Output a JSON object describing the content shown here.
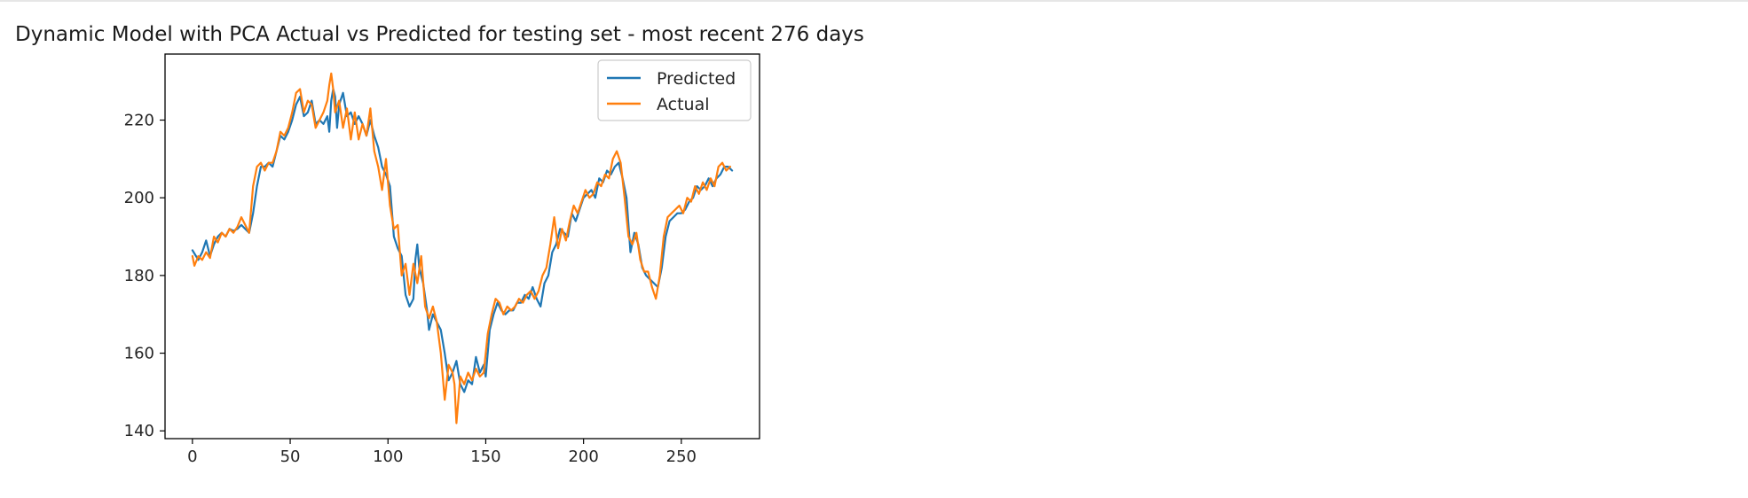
{
  "output": {
    "title": "Dynamic Model with PCA Actual vs Predicted for testing set - most recent 276 days"
  },
  "chart_data": {
    "type": "line",
    "title": "",
    "xlabel": "",
    "ylabel": "",
    "xlim": [
      -14,
      290
    ],
    "ylim": [
      138,
      237
    ],
    "xticks": [
      0,
      50,
      100,
      150,
      200,
      250
    ],
    "yticks": [
      140,
      160,
      180,
      200,
      220
    ],
    "grid": false,
    "legend_position": "top-right",
    "series": [
      {
        "name": "Predicted",
        "color": "#1f77b4",
        "points": [
          [
            0,
            186.5
          ],
          [
            3,
            184
          ],
          [
            5,
            186
          ],
          [
            7,
            189
          ],
          [
            9,
            185
          ],
          [
            11,
            188
          ],
          [
            13,
            190
          ],
          [
            15,
            191
          ],
          [
            17,
            190
          ],
          [
            19,
            192
          ],
          [
            21,
            191.5
          ],
          [
            23,
            192
          ],
          [
            25,
            193
          ],
          [
            27,
            192
          ],
          [
            29,
            191
          ],
          [
            31,
            196
          ],
          [
            33,
            203
          ],
          [
            35,
            208
          ],
          [
            37,
            208
          ],
          [
            39,
            209
          ],
          [
            41,
            208
          ],
          [
            43,
            212
          ],
          [
            45,
            216
          ],
          [
            47,
            215
          ],
          [
            49,
            217
          ],
          [
            51,
            220
          ],
          [
            53,
            224
          ],
          [
            55,
            226
          ],
          [
            57,
            221
          ],
          [
            59,
            222
          ],
          [
            61,
            225
          ],
          [
            63,
            219
          ],
          [
            65,
            220
          ],
          [
            67,
            219
          ],
          [
            69,
            221
          ],
          [
            70,
            217
          ],
          [
            71,
            225
          ],
          [
            72,
            228
          ],
          [
            73,
            226
          ],
          [
            74,
            218
          ],
          [
            75,
            224
          ],
          [
            77,
            227
          ],
          [
            79,
            221
          ],
          [
            81,
            222
          ],
          [
            83,
            219
          ],
          [
            85,
            221
          ],
          [
            87,
            219
          ],
          [
            89,
            216
          ],
          [
            91,
            220
          ],
          [
            93,
            216
          ],
          [
            95,
            213
          ],
          [
            97,
            208
          ],
          [
            99,
            206
          ],
          [
            101,
            203
          ],
          [
            103,
            190
          ],
          [
            105,
            187
          ],
          [
            107,
            185
          ],
          [
            109,
            175
          ],
          [
            111,
            172
          ],
          [
            113,
            174
          ],
          [
            114,
            184
          ],
          [
            115,
            188
          ],
          [
            116,
            182
          ],
          [
            118,
            178
          ],
          [
            120,
            171
          ],
          [
            121,
            166
          ],
          [
            123,
            170
          ],
          [
            125,
            168
          ],
          [
            127,
            166
          ],
          [
            129,
            160
          ],
          [
            131,
            153
          ],
          [
            133,
            155
          ],
          [
            135,
            158
          ],
          [
            137,
            152
          ],
          [
            139,
            150
          ],
          [
            141,
            153
          ],
          [
            143,
            152
          ],
          [
            145,
            159
          ],
          [
            147,
            155
          ],
          [
            149,
            157
          ],
          [
            150,
            154
          ],
          [
            152,
            166
          ],
          [
            154,
            170
          ],
          [
            156,
            173
          ],
          [
            158,
            171
          ],
          [
            160,
            170
          ],
          [
            162,
            171
          ],
          [
            164,
            171
          ],
          [
            166,
            173
          ],
          [
            168,
            173
          ],
          [
            170,
            175
          ],
          [
            172,
            174
          ],
          [
            174,
            177
          ],
          [
            176,
            174
          ],
          [
            178,
            172
          ],
          [
            180,
            178
          ],
          [
            182,
            180
          ],
          [
            184,
            186
          ],
          [
            186,
            188
          ],
          [
            188,
            192
          ],
          [
            190,
            191
          ],
          [
            192,
            190
          ],
          [
            194,
            196
          ],
          [
            196,
            194
          ],
          [
            198,
            197
          ],
          [
            200,
            200
          ],
          [
            202,
            201
          ],
          [
            204,
            202
          ],
          [
            206,
            200
          ],
          [
            208,
            205
          ],
          [
            210,
            204
          ],
          [
            212,
            207
          ],
          [
            214,
            206
          ],
          [
            216,
            208
          ],
          [
            218,
            209
          ],
          [
            220,
            205
          ],
          [
            222,
            200
          ],
          [
            224,
            186
          ],
          [
            226,
            191
          ],
          [
            228,
            188
          ],
          [
            230,
            182
          ],
          [
            232,
            180
          ],
          [
            234,
            179
          ],
          [
            236,
            178
          ],
          [
            238,
            177
          ],
          [
            240,
            182
          ],
          [
            242,
            190
          ],
          [
            244,
            194
          ],
          [
            246,
            195
          ],
          [
            248,
            196
          ],
          [
            250,
            196
          ],
          [
            252,
            197
          ],
          [
            254,
            199
          ],
          [
            256,
            200
          ],
          [
            258,
            203
          ],
          [
            260,
            202
          ],
          [
            262,
            203
          ],
          [
            264,
            205
          ],
          [
            266,
            203
          ],
          [
            268,
            205
          ],
          [
            270,
            206
          ],
          [
            272,
            208
          ],
          [
            274,
            208
          ],
          [
            276,
            207
          ]
        ]
      },
      {
        "name": "Actual",
        "color": "#ff7f0e",
        "points": [
          [
            0,
            185
          ],
          [
            1,
            182.5
          ],
          [
            3,
            185
          ],
          [
            5,
            184
          ],
          [
            7,
            186
          ],
          [
            9,
            184.5
          ],
          [
            11,
            190
          ],
          [
            13,
            188.5
          ],
          [
            15,
            191
          ],
          [
            17,
            190
          ],
          [
            19,
            192
          ],
          [
            21,
            191
          ],
          [
            23,
            192.5
          ],
          [
            25,
            195
          ],
          [
            27,
            193
          ],
          [
            29,
            191
          ],
          [
            31,
            203
          ],
          [
            33,
            208
          ],
          [
            35,
            209
          ],
          [
            37,
            207
          ],
          [
            39,
            209
          ],
          [
            41,
            209
          ],
          [
            43,
            212
          ],
          [
            45,
            217
          ],
          [
            47,
            216
          ],
          [
            49,
            218
          ],
          [
            51,
            222
          ],
          [
            53,
            227
          ],
          [
            55,
            228
          ],
          [
            57,
            222
          ],
          [
            59,
            225
          ],
          [
            61,
            224
          ],
          [
            63,
            218
          ],
          [
            65,
            220
          ],
          [
            67,
            222
          ],
          [
            69,
            225
          ],
          [
            70,
            229
          ],
          [
            71,
            232
          ],
          [
            72,
            228
          ],
          [
            73,
            222
          ],
          [
            75,
            225
          ],
          [
            77,
            218
          ],
          [
            79,
            223
          ],
          [
            81,
            215
          ],
          [
            83,
            222
          ],
          [
            85,
            215
          ],
          [
            87,
            219
          ],
          [
            89,
            216
          ],
          [
            91,
            223
          ],
          [
            93,
            212
          ],
          [
            95,
            208
          ],
          [
            97,
            202
          ],
          [
            99,
            210
          ],
          [
            101,
            198
          ],
          [
            103,
            192
          ],
          [
            105,
            193
          ],
          [
            107,
            180
          ],
          [
            109,
            183
          ],
          [
            111,
            175
          ],
          [
            113,
            183
          ],
          [
            115,
            178
          ],
          [
            117,
            185
          ],
          [
            119,
            172
          ],
          [
            121,
            169
          ],
          [
            123,
            172
          ],
          [
            125,
            168
          ],
          [
            127,
            160
          ],
          [
            129,
            148
          ],
          [
            131,
            157
          ],
          [
            133,
            155
          ],
          [
            134,
            152
          ],
          [
            135,
            142
          ],
          [
            137,
            154
          ],
          [
            139,
            152
          ],
          [
            141,
            155
          ],
          [
            143,
            153
          ],
          [
            145,
            156
          ],
          [
            147,
            154
          ],
          [
            149,
            155
          ],
          [
            151,
            165
          ],
          [
            153,
            170
          ],
          [
            155,
            174
          ],
          [
            157,
            173
          ],
          [
            159,
            170
          ],
          [
            161,
            172
          ],
          [
            163,
            171
          ],
          [
            165,
            172
          ],
          [
            167,
            174
          ],
          [
            169,
            173
          ],
          [
            171,
            175
          ],
          [
            173,
            176
          ],
          [
            175,
            174
          ],
          [
            177,
            176
          ],
          [
            179,
            180
          ],
          [
            181,
            182
          ],
          [
            183,
            188
          ],
          [
            185,
            195
          ],
          [
            187,
            187
          ],
          [
            189,
            192
          ],
          [
            191,
            189
          ],
          [
            193,
            194
          ],
          [
            195,
            198
          ],
          [
            197,
            196
          ],
          [
            199,
            199
          ],
          [
            201,
            202
          ],
          [
            203,
            200
          ],
          [
            205,
            201
          ],
          [
            207,
            204
          ],
          [
            209,
            203
          ],
          [
            211,
            206
          ],
          [
            213,
            205
          ],
          [
            215,
            210
          ],
          [
            217,
            212
          ],
          [
            219,
            209
          ],
          [
            221,
            200
          ],
          [
            223,
            190
          ],
          [
            225,
            188
          ],
          [
            227,
            191
          ],
          [
            229,
            184
          ],
          [
            231,
            181
          ],
          [
            233,
            181
          ],
          [
            235,
            177
          ],
          [
            237,
            174
          ],
          [
            239,
            180
          ],
          [
            241,
            190
          ],
          [
            243,
            195
          ],
          [
            245,
            196
          ],
          [
            247,
            197
          ],
          [
            249,
            198
          ],
          [
            251,
            196
          ],
          [
            253,
            200
          ],
          [
            255,
            199
          ],
          [
            257,
            203
          ],
          [
            259,
            201
          ],
          [
            261,
            204
          ],
          [
            263,
            202
          ],
          [
            265,
            205
          ],
          [
            267,
            203
          ],
          [
            269,
            208
          ],
          [
            271,
            209
          ],
          [
            273,
            207
          ],
          [
            275,
            208
          ]
        ]
      }
    ]
  }
}
